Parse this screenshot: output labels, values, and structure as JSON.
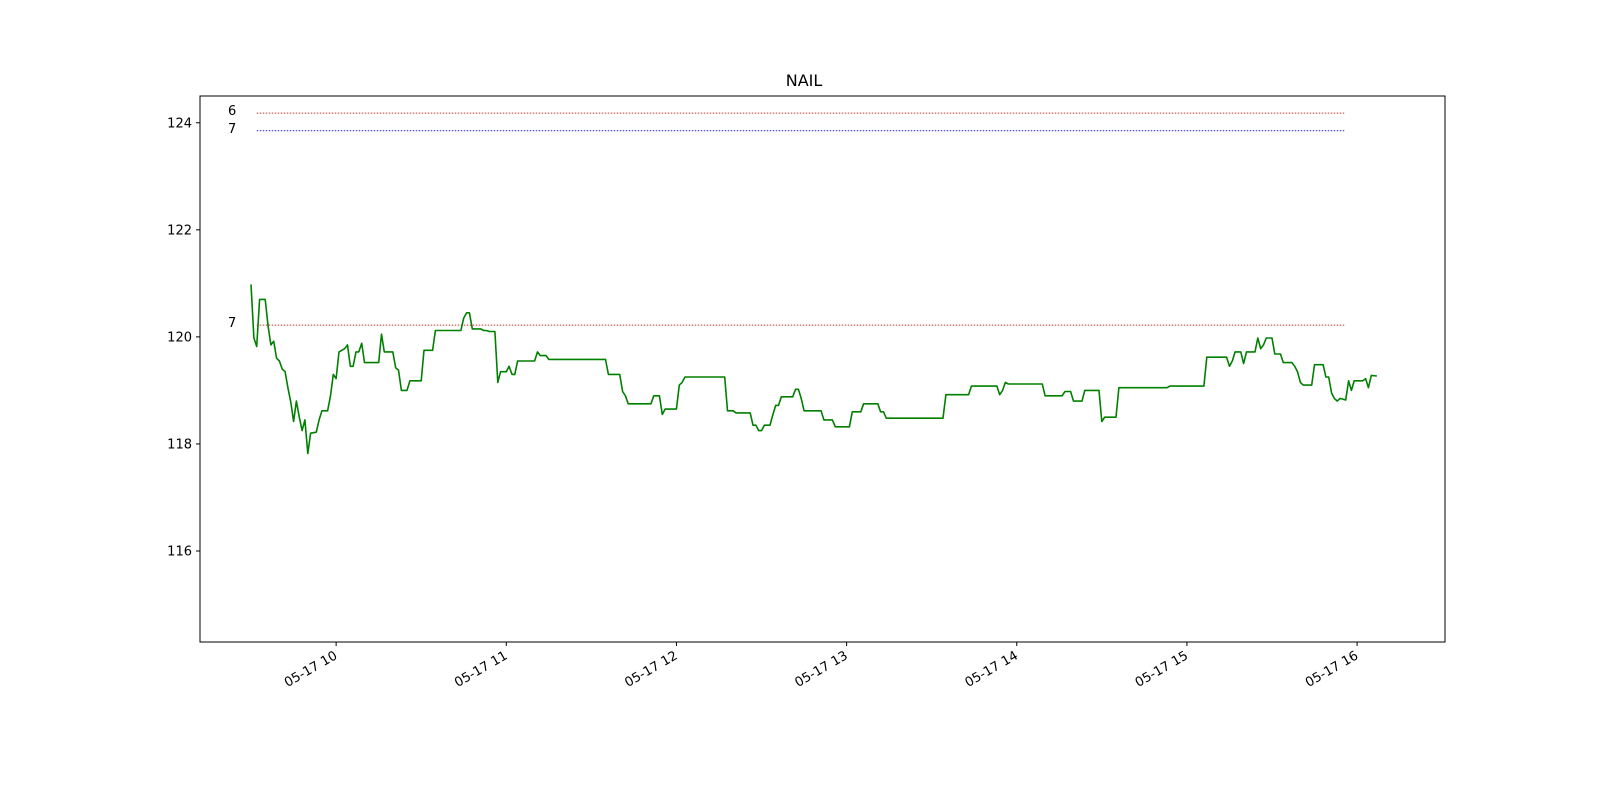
{
  "chart_data": {
    "type": "line",
    "title": "NAIL",
    "xlabel": "",
    "ylabel": "",
    "x_tick_labels": [
      "05-17 10",
      "05-17 11",
      "05-17 12",
      "05-17 13",
      "05-17 14",
      "05-17 15",
      "05-17 16"
    ],
    "y_tick_labels": [
      "116",
      "118",
      "120",
      "122",
      "124"
    ],
    "ylim": [
      114.3,
      124.5
    ],
    "xlim": [
      "05-17 09:12",
      "05-17 16:31"
    ],
    "grid": false,
    "series": [
      {
        "color": "#008000",
        "points": [
          [
            "09:30",
            120.98
          ],
          [
            "09:31",
            119.98
          ],
          [
            "09:32",
            119.82
          ],
          [
            "09:33",
            120.7
          ],
          [
            "09:35",
            120.7
          ],
          [
            "09:36",
            120.2
          ],
          [
            "09:37",
            119.85
          ],
          [
            "09:38",
            119.92
          ],
          [
            "09:39",
            119.6
          ],
          [
            "09:40",
            119.55
          ],
          [
            "09:41",
            119.4
          ],
          [
            "09:42",
            119.35
          ],
          [
            "09:43",
            119.05
          ],
          [
            "09:44",
            118.78
          ],
          [
            "09:45",
            118.42
          ],
          [
            "09:46",
            118.8
          ],
          [
            "09:47",
            118.5
          ],
          [
            "09:48",
            118.25
          ],
          [
            "09:49",
            118.45
          ],
          [
            "09:50",
            117.82
          ],
          [
            "09:51",
            118.2
          ],
          [
            "09:53",
            118.22
          ],
          [
            "09:54",
            118.45
          ],
          [
            "09:55",
            118.62
          ],
          [
            "09:57",
            118.62
          ],
          [
            "09:58",
            118.9
          ],
          [
            "09:59",
            119.3
          ],
          [
            "10:00",
            119.22
          ],
          [
            "10:01",
            119.72
          ],
          [
            "10:02",
            119.75
          ],
          [
            "10:03",
            119.78
          ],
          [
            "10:04",
            119.85
          ],
          [
            "10:05",
            119.45
          ],
          [
            "10:06",
            119.45
          ],
          [
            "10:07",
            119.72
          ],
          [
            "10:08",
            119.72
          ],
          [
            "10:09",
            119.88
          ],
          [
            "10:10",
            119.52
          ],
          [
            "10:15",
            119.52
          ],
          [
            "10:16",
            120.05
          ],
          [
            "10:17",
            119.72
          ],
          [
            "10:20",
            119.72
          ],
          [
            "10:21",
            119.42
          ],
          [
            "10:22",
            119.38
          ],
          [
            "10:23",
            119.0
          ],
          [
            "10:25",
            119.0
          ],
          [
            "10:26",
            119.18
          ],
          [
            "10:30",
            119.18
          ],
          [
            "10:31",
            119.75
          ],
          [
            "10:34",
            119.75
          ],
          [
            "10:35",
            120.12
          ],
          [
            "10:44",
            120.12
          ],
          [
            "10:45",
            120.35
          ],
          [
            "10:46",
            120.45
          ],
          [
            "10:47",
            120.45
          ],
          [
            "10:48",
            120.15
          ],
          [
            "10:51",
            120.15
          ],
          [
            "10:52",
            120.12
          ],
          [
            "10:53",
            120.12
          ],
          [
            "10:54",
            120.1
          ],
          [
            "10:56",
            120.1
          ],
          [
            "10:57",
            119.15
          ],
          [
            "10:58",
            119.35
          ],
          [
            "11:00",
            119.35
          ],
          [
            "11:01",
            119.45
          ],
          [
            "11:02",
            119.3
          ],
          [
            "11:03",
            119.3
          ],
          [
            "11:04",
            119.55
          ],
          [
            "11:10",
            119.55
          ],
          [
            "11:11",
            119.72
          ],
          [
            "11:12",
            119.65
          ],
          [
            "11:14",
            119.65
          ],
          [
            "11:15",
            119.58
          ],
          [
            "11:35",
            119.58
          ],
          [
            "11:36",
            119.3
          ],
          [
            "11:40",
            119.3
          ],
          [
            "11:41",
            118.98
          ],
          [
            "11:42",
            118.9
          ],
          [
            "11:43",
            118.75
          ],
          [
            "11:51",
            118.75
          ],
          [
            "11:52",
            118.9
          ],
          [
            "11:54",
            118.9
          ],
          [
            "11:55",
            118.55
          ],
          [
            "11:56",
            118.65
          ],
          [
            "12:00",
            118.65
          ],
          [
            "12:01",
            119.1
          ],
          [
            "12:02",
            119.15
          ],
          [
            "12:03",
            119.25
          ],
          [
            "12:17",
            119.25
          ],
          [
            "12:18",
            118.62
          ],
          [
            "12:20",
            118.62
          ],
          [
            "12:21",
            118.58
          ],
          [
            "12:26",
            118.58
          ],
          [
            "12:27",
            118.35
          ],
          [
            "12:28",
            118.35
          ],
          [
            "12:29",
            118.25
          ],
          [
            "12:30",
            118.25
          ],
          [
            "12:31",
            118.35
          ],
          [
            "12:33",
            118.35
          ],
          [
            "12:34",
            118.55
          ],
          [
            "12:35",
            118.72
          ],
          [
            "12:36",
            118.72
          ],
          [
            "12:37",
            118.88
          ],
          [
            "12:41",
            118.88
          ],
          [
            "12:42",
            119.02
          ],
          [
            "12:43",
            119.02
          ],
          [
            "12:44",
            118.85
          ],
          [
            "12:45",
            118.62
          ],
          [
            "12:51",
            118.62
          ],
          [
            "12:52",
            118.45
          ],
          [
            "12:55",
            118.45
          ],
          [
            "12:56",
            118.32
          ],
          [
            "13:01",
            118.32
          ],
          [
            "13:02",
            118.6
          ],
          [
            "13:05",
            118.6
          ],
          [
            "13:06",
            118.75
          ],
          [
            "13:11",
            118.75
          ],
          [
            "13:12",
            118.6
          ],
          [
            "13:13",
            118.6
          ],
          [
            "13:14",
            118.48
          ],
          [
            "13:34",
            118.48
          ],
          [
            "13:35",
            118.92
          ],
          [
            "13:43",
            118.92
          ],
          [
            "13:44",
            119.08
          ],
          [
            "13:53",
            119.08
          ],
          [
            "13:54",
            118.92
          ],
          [
            "13:55",
            119.0
          ],
          [
            "13:56",
            119.15
          ],
          [
            "13:57",
            119.12
          ],
          [
            "14:09",
            119.12
          ],
          [
            "14:10",
            118.9
          ],
          [
            "14:16",
            118.9
          ],
          [
            "14:17",
            118.98
          ],
          [
            "14:19",
            118.98
          ],
          [
            "14:20",
            118.8
          ],
          [
            "14:23",
            118.8
          ],
          [
            "14:24",
            119.0
          ],
          [
            "14:29",
            119.0
          ],
          [
            "14:30",
            118.42
          ],
          [
            "14:31",
            118.5
          ],
          [
            "14:35",
            118.5
          ],
          [
            "14:36",
            119.05
          ],
          [
            "14:53",
            119.05
          ],
          [
            "14:54",
            119.08
          ],
          [
            "15:06",
            119.08
          ],
          [
            "15:07",
            119.62
          ],
          [
            "15:14",
            119.62
          ],
          [
            "15:15",
            119.45
          ],
          [
            "15:16",
            119.55
          ],
          [
            "15:17",
            119.72
          ],
          [
            "15:19",
            119.72
          ],
          [
            "15:20",
            119.5
          ],
          [
            "15:21",
            119.72
          ],
          [
            "15:24",
            119.72
          ],
          [
            "15:25",
            119.98
          ],
          [
            "15:26",
            119.78
          ],
          [
            "15:27",
            119.85
          ],
          [
            "15:28",
            119.98
          ],
          [
            "15:30",
            119.98
          ],
          [
            "15:31",
            119.68
          ],
          [
            "15:33",
            119.68
          ],
          [
            "15:34",
            119.52
          ],
          [
            "15:37",
            119.52
          ],
          [
            "15:38",
            119.45
          ],
          [
            "15:39",
            119.35
          ],
          [
            "15:40",
            119.15
          ],
          [
            "15:41",
            119.1
          ],
          [
            "15:44",
            119.1
          ],
          [
            "15:45",
            119.48
          ],
          [
            "15:48",
            119.48
          ],
          [
            "15:49",
            119.25
          ],
          [
            "15:50",
            119.25
          ],
          [
            "15:51",
            118.95
          ],
          [
            "15:52",
            118.85
          ],
          [
            "15:53",
            118.8
          ],
          [
            "15:54",
            118.85
          ],
          [
            "15:56",
            118.82
          ],
          [
            "15:57",
            119.18
          ],
          [
            "15:58",
            119.0
          ],
          [
            "15:59",
            119.18
          ],
          [
            "16:02",
            119.18
          ],
          [
            "16:03",
            119.22
          ],
          [
            "16:04",
            119.05
          ],
          [
            "16:05",
            119.28
          ],
          [
            "16:07",
            119.27
          ]
        ]
      }
    ],
    "levels": [
      {
        "label": "6",
        "value": 124.18,
        "color": "#c0392b",
        "start": "09:32",
        "end": "15:56"
      },
      {
        "label": "7",
        "value": 123.85,
        "color": "#2222cc",
        "start": "09:32",
        "end": "15:56"
      },
      {
        "label": "7",
        "value": 120.22,
        "color": "#c0392b",
        "start": "09:32",
        "end": "15:56"
      }
    ]
  }
}
